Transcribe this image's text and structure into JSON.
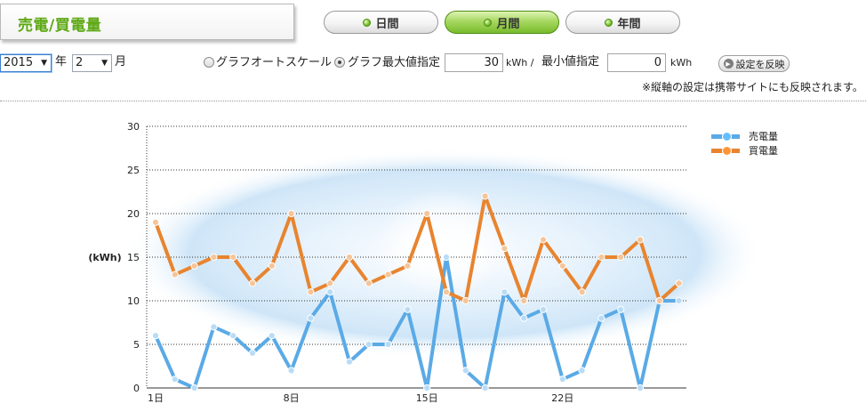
{
  "header": {
    "title": "売電/買電量"
  },
  "period_tabs": [
    {
      "label": "日間",
      "active": false
    },
    {
      "label": "月間",
      "active": true
    },
    {
      "label": "年間",
      "active": false
    }
  ],
  "controls": {
    "year_value": "2015",
    "year_suffix": "年",
    "month_value": "2",
    "month_suffix": "月",
    "auto_scale_label": "グラフオートスケール",
    "max_label": "グラフ最大値指定",
    "max_value": "30",
    "max_unit": "kWh /",
    "min_label": "最小値指定",
    "min_value": "0",
    "min_unit": "kWh",
    "apply_label": "設定を反映",
    "note": "※縦軸の設定は携帯サイトにも反映されます。"
  },
  "colors": {
    "sell": "#5aaae6",
    "buy": "#e8842f",
    "accent_green": "#5ea915"
  },
  "chart_data": {
    "type": "line",
    "title": "",
    "xlabel": "",
    "ylabel": "(kWh)",
    "ylim": [
      0,
      30
    ],
    "yticks": [
      "0",
      "5",
      "10",
      "15",
      "20",
      "25",
      "30"
    ],
    "xtick_labels": [
      "1日",
      "8日",
      "15日",
      "22日"
    ],
    "x": [
      1,
      2,
      3,
      4,
      5,
      6,
      7,
      8,
      9,
      10,
      11,
      12,
      13,
      14,
      15,
      16,
      17,
      18,
      19,
      20,
      21,
      22,
      23,
      24,
      25,
      26,
      27,
      28
    ],
    "grid": true,
    "legend": "top-right",
    "series": [
      {
        "name": "売電量",
        "values": [
          6,
          1,
          0,
          7,
          6,
          4,
          6,
          2,
          8,
          11,
          3,
          5,
          5,
          9,
          0,
          15,
          2,
          0,
          11,
          8,
          9,
          1,
          2,
          8,
          9,
          0,
          10,
          10
        ]
      },
      {
        "name": "買電量",
        "values": [
          19,
          13,
          14,
          15,
          15,
          12,
          14,
          20,
          11,
          12,
          15,
          12,
          13,
          14,
          20,
          11,
          10,
          22,
          16,
          10,
          17,
          14,
          11,
          15,
          15,
          17,
          10,
          12
        ]
      }
    ]
  }
}
